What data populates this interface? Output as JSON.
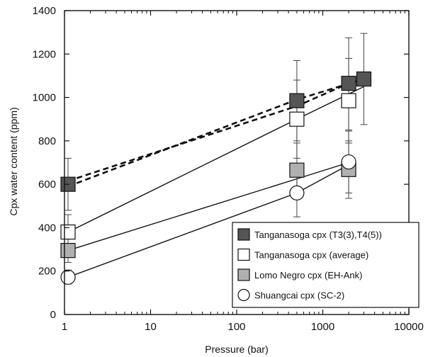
{
  "chart_data": {
    "type": "scatter",
    "xlabel": "Pressure (bar)",
    "ylabel": "Cpx water content (ppm)",
    "xscale": "log",
    "xlim": [
      1,
      10000
    ],
    "ylim": [
      0,
      1400
    ],
    "x_ticks": [
      {
        "value": 1,
        "label": "1"
      },
      {
        "value": 10,
        "label": "10"
      },
      {
        "value": 100,
        "label": "100"
      },
      {
        "value": 1000,
        "label": "1000"
      },
      {
        "value": 10000,
        "label": "10000"
      }
    ],
    "y_ticks": [
      {
        "value": 0,
        "label": "0"
      },
      {
        "value": 200,
        "label": "200"
      },
      {
        "value": 400,
        "label": "400"
      },
      {
        "value": 600,
        "label": "600"
      },
      {
        "value": 800,
        "label": "800"
      },
      {
        "value": 1000,
        "label": "1000"
      },
      {
        "value": 1200,
        "label": "1200"
      },
      {
        "value": 1400,
        "label": "1400"
      }
    ],
    "grid": false,
    "legend_position": "bottom-right",
    "series": [
      {
        "name": "Tanganasoga cpx (T3(3),T4(5))",
        "marker": "square",
        "fill": "#555555",
        "lines": [
          {
            "style": "dashed",
            "points": [
              [
                1.1,
                615
              ],
              [
                500,
                960
              ],
              [
                2000,
                1065
              ]
            ]
          },
          {
            "style": "dashed",
            "points": [
              [
                1.1,
                590
              ],
              [
                500,
                990
              ],
              [
                3000,
                1085
              ]
            ]
          }
        ],
        "points": [
          {
            "x": 1.1,
            "y": 600,
            "err_low": 480,
            "err_high": 720
          },
          {
            "x": 500,
            "y": 985,
            "err_low": 800,
            "err_high": 1170
          },
          {
            "x": 2000,
            "y": 1065,
            "err_low": 850,
            "err_high": 1275
          },
          {
            "x": 3000,
            "y": 1085,
            "err_low": 875,
            "err_high": 1295
          }
        ]
      },
      {
        "name": "Tanganasoga cpx (average)",
        "marker": "square",
        "fill": "#ffffff",
        "lines": [
          {
            "style": "solid",
            "points": [
              [
                1.1,
                380
              ],
              [
                500,
                900
              ],
              [
                3000,
                1050
              ]
            ]
          }
        ],
        "points": [
          {
            "x": 1.1,
            "y": 380,
            "err_low": 300,
            "err_high": 460
          },
          {
            "x": 500,
            "y": 900,
            "err_low": 720,
            "err_high": 1080
          },
          {
            "x": 2000,
            "y": 985,
            "err_low": 790,
            "err_high": 1180
          }
        ]
      },
      {
        "name": "Lomo Negro cpx (EH-Ank)",
        "marker": "square",
        "fill": "#b0b0b0",
        "lines": [
          {
            "style": "solid",
            "points": [
              [
                1.1,
                295
              ],
              [
                500,
                625
              ],
              [
                2000,
                700
              ]
            ]
          }
        ],
        "points": [
          {
            "x": 1.1,
            "y": 295,
            "err_low": 240,
            "err_high": 350
          },
          {
            "x": 500,
            "y": 665,
            "err_low": 540,
            "err_high": 790
          },
          {
            "x": 2000,
            "y": 668,
            "err_low": 535,
            "err_high": 800
          }
        ]
      },
      {
        "name": "Shuangcai cpx (SC-2)",
        "marker": "circle",
        "fill": "#ffffff",
        "lines": [
          {
            "style": "solid",
            "points": [
              [
                1.1,
                172
              ],
              [
                500,
                560
              ],
              [
                2000,
                690
              ]
            ]
          }
        ],
        "points": [
          {
            "x": 1.1,
            "y": 172,
            "err_low": 140,
            "err_high": 205
          },
          {
            "x": 500,
            "y": 560,
            "err_low": 450,
            "err_high": 670
          },
          {
            "x": 2000,
            "y": 703,
            "err_low": 560,
            "err_high": 845
          }
        ]
      }
    ]
  }
}
